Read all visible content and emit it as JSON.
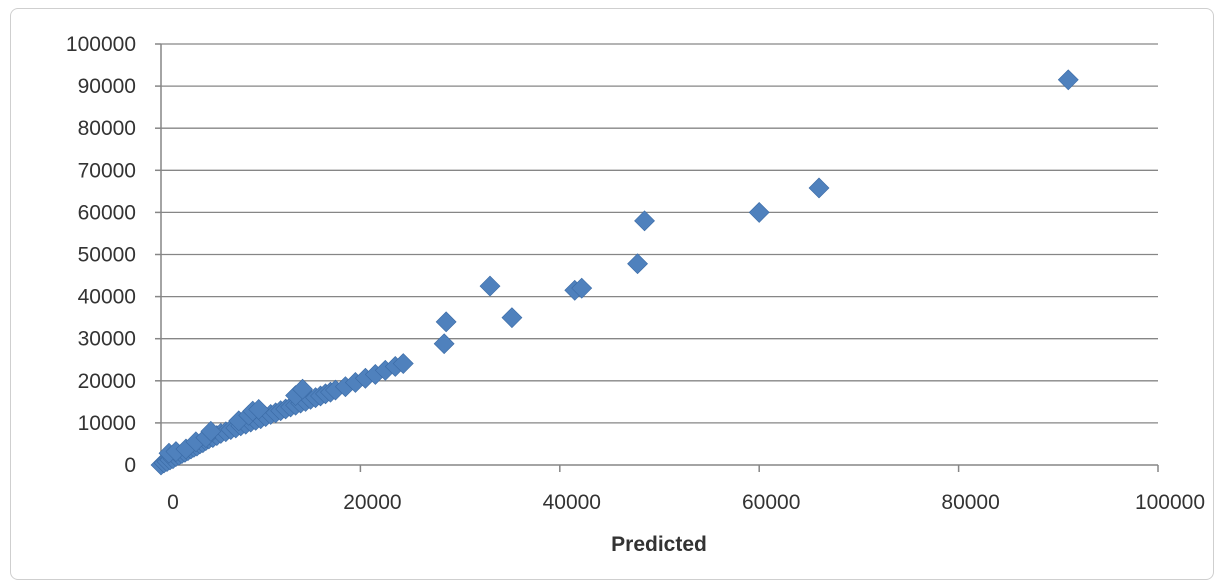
{
  "chart_data": {
    "type": "scatter",
    "title": "",
    "xlabel": "Predicted",
    "ylabel": "",
    "xlim": [
      0,
      100000
    ],
    "ylim": [
      0,
      100000
    ],
    "x_ticks": [
      0,
      20000,
      40000,
      60000,
      80000,
      100000
    ],
    "y_ticks": [
      0,
      10000,
      20000,
      30000,
      40000,
      50000,
      60000,
      70000,
      80000,
      90000,
      100000
    ],
    "x_tick_labels": [
      "0",
      "20000",
      "40000",
      "60000",
      "80000",
      "100000"
    ],
    "y_tick_labels": [
      "0",
      "10000",
      "20000",
      "30000",
      "40000",
      "50000",
      "60000",
      "70000",
      "80000",
      "90000",
      "100000"
    ],
    "grid": "horizontal",
    "legend": "none",
    "marker": "diamond",
    "color": "#4f81bd",
    "series": [
      {
        "x": [
          0,
          300,
          600,
          900,
          1200,
          1500,
          1800,
          2100,
          2400,
          2700,
          3000,
          3300,
          3600,
          3900,
          4200,
          4500,
          4800,
          5200,
          5600,
          6000,
          6500,
          7000,
          7500,
          8000,
          8500,
          9000,
          9500,
          10000,
          10500,
          11000,
          11500,
          12000,
          12500,
          13000,
          13500,
          14000,
          14500,
          15000,
          15500,
          16000,
          16500,
          17000,
          17500,
          18500,
          19500,
          20500,
          21500,
          22500,
          23500,
          24300,
          800,
          1500,
          2500,
          3500,
          4500,
          5000,
          7800,
          8800,
          9200,
          9800,
          13500,
          14200,
          28400,
          28600,
          33000,
          35200,
          41500,
          42200,
          47800,
          48500,
          60000,
          66000,
          91000
        ],
        "y": [
          0,
          500,
          800,
          1200,
          1500,
          2000,
          2300,
          2700,
          3000,
          3400,
          3800,
          4200,
          4500,
          5000,
          5300,
          5800,
          6200,
          6500,
          7000,
          7500,
          7900,
          8400,
          8800,
          9300,
          9700,
          10200,
          10600,
          11000,
          11500,
          12000,
          12400,
          12900,
          13300,
          13800,
          14200,
          14700,
          15100,
          15600,
          16000,
          16400,
          16900,
          17300,
          17800,
          18600,
          19600,
          20600,
          21500,
          22500,
          23400,
          24100,
          2800,
          3200,
          3800,
          5500,
          6500,
          8000,
          10500,
          11800,
          12800,
          13200,
          16500,
          18000,
          28800,
          34000,
          42500,
          35000,
          41500,
          42000,
          47800,
          58000,
          60000,
          65800,
          91500
        ]
      }
    ]
  }
}
